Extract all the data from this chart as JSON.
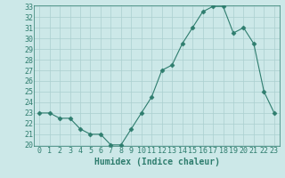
{
  "x": [
    0,
    1,
    2,
    3,
    4,
    5,
    6,
    7,
    8,
    9,
    10,
    11,
    12,
    13,
    14,
    15,
    16,
    17,
    18,
    19,
    20,
    21,
    22,
    23
  ],
  "y": [
    23,
    23,
    22.5,
    22.5,
    21.5,
    21,
    21,
    20,
    20,
    21.5,
    23,
    24.5,
    27,
    27.5,
    29.5,
    31,
    32.5,
    33,
    33,
    30.5,
    31,
    29.5,
    25,
    23
  ],
  "line_color": "#2e7d6e",
  "marker": "D",
  "marker_size": 2.5,
  "bg_color": "#cce8e8",
  "grid_color": "#aacfcf",
  "xlabel": "Humidex (Indice chaleur)",
  "ylim": [
    20,
    33
  ],
  "xlim": [
    -0.5,
    23.5
  ],
  "yticks": [
    20,
    21,
    22,
    23,
    24,
    25,
    26,
    27,
    28,
    29,
    30,
    31,
    32,
    33
  ],
  "xticks": [
    0,
    1,
    2,
    3,
    4,
    5,
    6,
    7,
    8,
    9,
    10,
    11,
    12,
    13,
    14,
    15,
    16,
    17,
    18,
    19,
    20,
    21,
    22,
    23
  ],
  "xlabel_fontsize": 7,
  "tick_fontsize": 6,
  "line_color_hex": "#2e7d6e",
  "axis_color": "#2e7d6e",
  "linewidth": 0.8
}
